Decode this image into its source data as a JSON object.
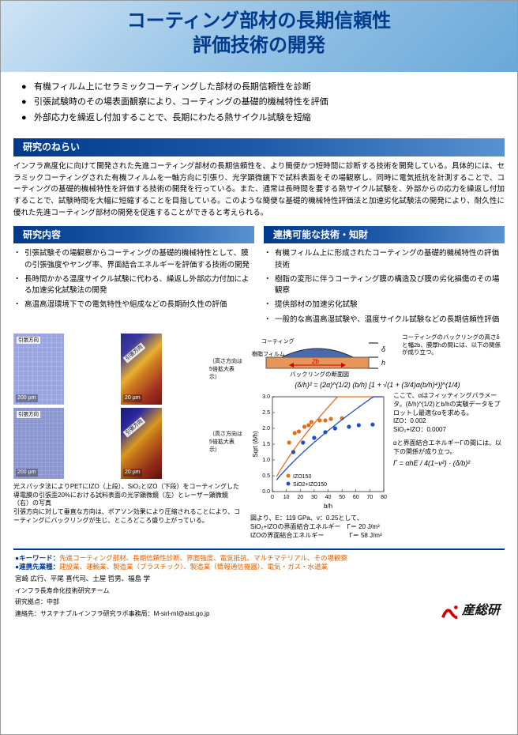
{
  "header": {
    "title_line1": "コーティング部材の長期信頼性",
    "title_line2": "評価技術の開発"
  },
  "top_bullets": [
    "有機フィルム上にセラミックコーティングした部材の長期信頼性を診断",
    "引張試験時のその場表面観察により、コーティングの基礎的機械特性を評価",
    "外部応力を繰返し付加することで、長期にわたる熱サイクル試験を短縮"
  ],
  "section_aim_label": "研究のねらい",
  "aim_text": "インフラ高度化に向けて開発された先進コーティング部材の長期信頼性を、より簡便かつ短時間に診断する技術を開発している。具体的には、セラミックコーティングされた有機フィルムを一軸方向に引張り、光学顕微鏡下で試料表面をその場観察し、同時に電気抵抗を計測することで、コーティングの基礎的機械特性を評価する技術の開発を行っている。また、通常は長時間を要する熱サイクル試験を、外部からの応力を繰返し付加することで、試験時間を大幅に短縮することを目指している。このような簡便な基礎的機械特性評価法と加速劣化試験法の開発により、耐久性に優れた先進コーティング部材の開発を促進することができると考えられる。",
  "section_research_label": "研究内容",
  "research_items": [
    "引張試験その場観察からコーティングの基礎的機械特性として、膜の引張強度やヤング率、界面結合エネルギーを評価する技術の開発",
    "長時間かかる温度サイクル試験に代わる、繰返し外部応力付加による加速劣化試験法の開発",
    "高温高湿環境下での電気特性や組成などの長期耐久性の評価"
  ],
  "section_collab_label": "連携可能な技術・知財",
  "collab_items": [
    "有機フィルム上に形成されたコーティングの基礎的機械特性の評価技術",
    "樹脂の変形に伴うコーティング膜の構造及び膜の劣化損傷のその場観察",
    "提供部材の加速劣化試験",
    "一般的な高温高湿試験や、温度サイクル試験などの長期信頼性評価"
  ],
  "micrographs": {
    "tl": {
      "scale": "200 µm",
      "arrow": "引張方向",
      "bg": "#9aa4de"
    },
    "tr": {
      "scale": "20 µm",
      "arrow": "引張方向",
      "bg": "linear-gradient(135deg,#2a2a88,#e8b030,#a03020)",
      "note": "（高さ方向は\n5倍拡大表示）"
    },
    "bl": {
      "scale": "200 µm",
      "arrow": "引張方向",
      "bg": "#8b95d0"
    },
    "br": {
      "scale": "20 µm",
      "arrow": "引張方向",
      "bg": "linear-gradient(135deg,#1a1a70,#d89820,#902818)",
      "note": "（高さ方向は\n5倍拡大表示）"
    }
  },
  "fig_caption_left": "光スパッタ法によりPETにIZO（上段）、SiO₂とIZO（下段）をコーティングした導電膜の引張歪20%における試料表面の光学顕微鏡（左）とレーザー顕微鏡（右）の写真\n引張方向に対して垂直な方向は、ポアソン効果により圧縮されることにより、コーティングにバックリングが生じ、ところどころ盛り上がっている。",
  "buckling": {
    "label_coating": "コーティング",
    "label_film": "樹脂フィルム",
    "delta": "δ",
    "h": "h",
    "twob": "2b",
    "caption": "バックリングの断面図",
    "note": "コーティングのバックリングの高さδと幅2b、膜厚hの間には、以下の関係が成り立つ。"
  },
  "equations": {
    "eq1": "(δ/h)² = (2α)^(1/2) (b/h) [1 + √(1 + (3/4)α(b/h)⁴)]^(1/4)",
    "eq2": "Γ = αhE / 4(1−ν²) · (δ/b)²",
    "note_alpha": "ここで、αはフィッティングパラメータ。(δ/h)^(1/2)とb/hの実験データをプロットし最適なαを求める。",
    "izo_alpha": "IZO：0.002",
    "sio_alpha": "SiO₂+IZO：0.0007",
    "note_gamma": "αと界面結合エネルギーΓの間には、以下の関係が成り立つ。"
  },
  "chart": {
    "xlabel": "b/h",
    "ylabel": "Sqrt (δ/h)",
    "xlim": [
      0,
      80
    ],
    "xticks": [
      0,
      10,
      20,
      30,
      40,
      50,
      60,
      70,
      80
    ],
    "ylim": [
      0,
      3.0
    ],
    "yticks": [
      0,
      0.5,
      1.0,
      1.5,
      2.0,
      2.5,
      3.0
    ],
    "series": [
      {
        "name": "IZO150",
        "marker_color": "#e07020",
        "line_color": "#e07020",
        "points": [
          [
            12,
            1.55
          ],
          [
            16,
            1.85
          ],
          [
            19,
            1.9
          ],
          [
            23,
            2.05
          ],
          [
            26,
            2.1
          ],
          [
            28,
            2.2
          ],
          [
            34,
            2.25
          ],
          [
            38,
            2.25
          ],
          [
            42,
            2.3
          ],
          [
            50,
            2.32
          ]
        ]
      },
      {
        "name": "SiO2+IZO150",
        "marker_color": "#2050c0",
        "line_color": "#2050c0",
        "points": [
          [
            15,
            1.25
          ],
          [
            22,
            1.55
          ],
          [
            30,
            1.7
          ],
          [
            38,
            1.88
          ],
          [
            45,
            2.0
          ],
          [
            55,
            2.05
          ],
          [
            62,
            2.1
          ],
          [
            72,
            2.12
          ]
        ]
      }
    ],
    "bg": "#ffffff",
    "grid_color": "#cccccc",
    "axis_fontsize": 8,
    "title_fontsize": 9
  },
  "chart_conclusion": {
    "pre": "図より、E：119 GPa、ν：0.25として、",
    "line1": "SiO₂+IZOの界面結合エネルギー　Γ＝ 20 J/m²",
    "line2": "IZOの界面結合エネルギー　　　　Γ＝ 58 J/m²"
  },
  "footer": {
    "kw_label": "●キーワード：",
    "keywords": "先進コーティング部材、長期信頼性診断、界面強度、電気抵抗、マルチマテリアル、その場観察",
    "ind_label": "●連携先業種：",
    "industries": "建設業、運輸業、製造業（プラスチック）、製造業（情報通信機器）、電気・ガス・水道業",
    "authors": "宮崎 広行、平尾 喜代司、土屋 哲男、福島 学",
    "team": "インフラ長寿命化技術研究チーム",
    "base": "研究拠点：中部",
    "contact": "連絡先：サステナブルインフラ研究ラボ事務局：M-sirl-ml@aist.go.jp",
    "logo_text": "産総研"
  },
  "colors": {
    "header_text": "#003a8c",
    "label_grad_a": "#003a8c",
    "label_grad_b": "#5a92d0",
    "orange": "#e06000",
    "izo_marker": "#e07020",
    "sio_marker": "#2050c0",
    "logo_red": "#cc0000"
  }
}
